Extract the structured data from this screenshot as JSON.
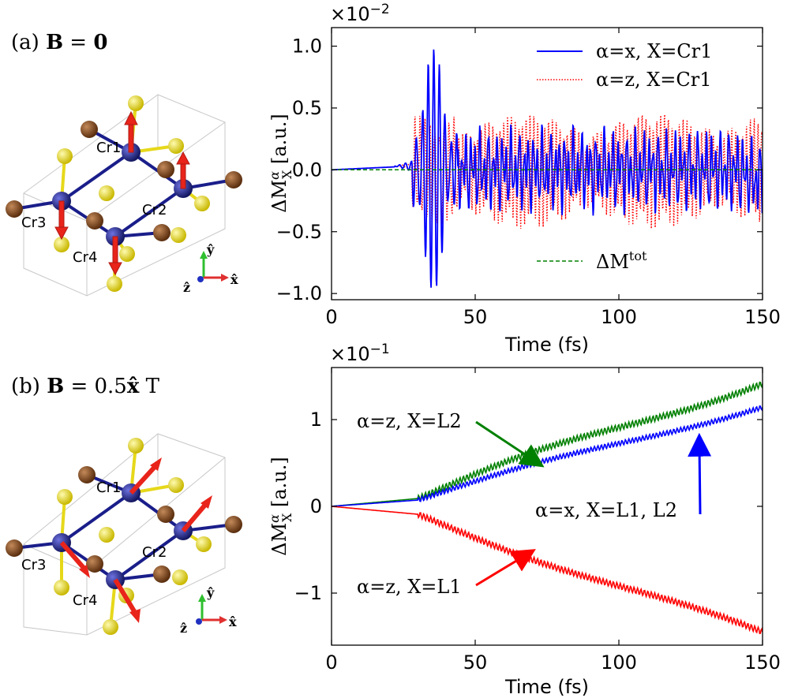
{
  "panel_a": {
    "label_prefix": "(a)",
    "label_bold": "B",
    "label_eq": " = ",
    "label_value": "0",
    "atoms": [
      "Cr1",
      "Cr2",
      "Cr3",
      "Cr4"
    ],
    "axis_glyphs": {
      "y": "ŷ",
      "z": "ẑ",
      "x": "x̂"
    }
  },
  "panel_b": {
    "label_prefix": "(b)",
    "label_bold": "B",
    "label_eq": " = 0.5",
    "label_hat": "x̂",
    "label_unit": " T",
    "atoms": [
      "Cr1",
      "Cr2",
      "Cr3",
      "Cr4"
    ],
    "axis_glyphs": {
      "y": "ŷ",
      "z": "ẑ",
      "x": "x̂"
    }
  },
  "colors": {
    "blue": "#0000ff",
    "red": "#ff0000",
    "green": "#008000",
    "cr_atom": "#22269a",
    "s_atom": "#f2e51b",
    "br_atom": "#8a4f22",
    "moment_arrow": "#e8241b"
  },
  "chart_data": [
    {
      "type": "line",
      "panel": "a",
      "xlabel": "Time (fs)",
      "ylabel_main": "ΔM",
      "ylabel_sup": "α",
      "ylabel_sub": "X",
      "ylabel_unit": " [a.u.]",
      "scale_base": "×10",
      "scale_exp": "−2",
      "xlim": [
        0,
        150
      ],
      "ylim": [
        -1.05,
        1.15
      ],
      "xticks": [
        0,
        50,
        100,
        150
      ],
      "xtick_labels": [
        "0",
        "50",
        "100",
        "150"
      ],
      "yticks": [
        -1.0,
        -0.5,
        0.0,
        0.5,
        1.0
      ],
      "ytick_labels": [
        "−1.0",
        "−0.5",
        "0.0",
        "0.5",
        "1.0"
      ],
      "series": [
        {
          "name": "α=x, X=Cr1",
          "color": "#0000ff",
          "style": "solid"
        },
        {
          "name": "α=z, X=Cr1",
          "color": "#ff0000",
          "style": "dotted"
        },
        {
          "name": "ΔMtot",
          "legend_main": "ΔM",
          "legend_sup": "tot",
          "color": "#008000",
          "style": "dashed"
        }
      ]
    },
    {
      "type": "line",
      "panel": "b",
      "xlabel": "Time (fs)",
      "ylabel_main": "ΔM",
      "ylabel_sup": "α",
      "ylabel_sub": "X",
      "ylabel_unit": " [a.u.]",
      "scale_base": "×10",
      "scale_exp": "−1",
      "xlim": [
        0,
        150
      ],
      "ylim": [
        -1.6,
        1.6
      ],
      "xticks": [
        0,
        50,
        100,
        150
      ],
      "xtick_labels": [
        "0",
        "50",
        "100",
        "150"
      ],
      "yticks": [
        -1,
        0,
        1
      ],
      "ytick_labels": [
        "−1",
        "0",
        "1"
      ],
      "series": [
        {
          "name": "α=z, X=L2",
          "color": "#008000",
          "style": "solid",
          "end_value": 1.5
        },
        {
          "name": "α=x, X=L1, L2",
          "color": "#0000ff",
          "style": "solid",
          "end_value": 1.2
        },
        {
          "name": "α=z, X=L1",
          "color": "#ff0000",
          "style": "solid",
          "end_value": -1.52
        }
      ],
      "annotations": [
        {
          "text": "α=z, X=L2",
          "target_x": 72,
          "target_y": 0.55,
          "color": "#008000"
        },
        {
          "text": "α=x, X=L1, L2",
          "target_x": 128,
          "target_y": 0.82,
          "color": "#0000ff"
        },
        {
          "text": "α=z, X=L1",
          "target_x": 69,
          "target_y": -0.48,
          "color": "#ff0000"
        }
      ]
    }
  ]
}
